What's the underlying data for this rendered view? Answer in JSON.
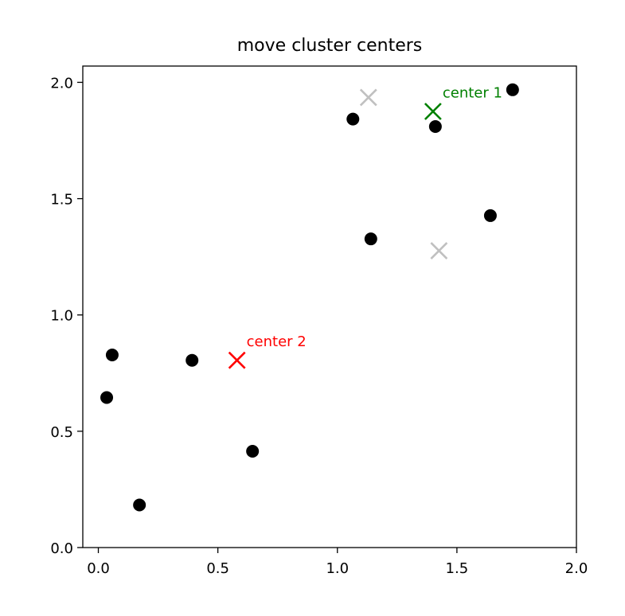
{
  "chart_data": {
    "type": "scatter",
    "title": "move cluster centers",
    "xlabel": "",
    "ylabel": "",
    "xlim": [
      -0.065,
      2.0
    ],
    "ylim": [
      0.0,
      2.07
    ],
    "xticks": [
      0.0,
      0.5,
      1.0,
      1.5,
      2.0
    ],
    "xtick_labels": [
      "0.0",
      "0.5",
      "1.0",
      "1.5",
      "2.0"
    ],
    "yticks": [
      0.0,
      0.5,
      1.0,
      1.5,
      2.0
    ],
    "ytick_labels": [
      "0.0",
      "0.5",
      "1.0",
      "1.5",
      "2.0"
    ],
    "grid": false,
    "points": {
      "color": "#000000",
      "x": [
        0.035,
        0.058,
        0.172,
        0.392,
        0.645,
        1.065,
        1.14,
        1.41,
        1.64,
        1.733
      ],
      "y": [
        0.645,
        0.828,
        0.183,
        0.805,
        0.414,
        1.842,
        1.327,
        1.81,
        1.427,
        1.968
      ]
    },
    "old_centers": {
      "color": "#c0c0c0",
      "x": [
        1.13,
        1.425
      ],
      "y": [
        1.935,
        1.276
      ]
    },
    "new_centers": [
      {
        "x": 1.4,
        "y": 1.875,
        "color": "#008000",
        "label": "center 1",
        "label_dx": 0.04,
        "label_dy": 0.06
      },
      {
        "x": 0.58,
        "y": 0.805,
        "color": "#ff0000",
        "label": "center 2",
        "label_dx": 0.04,
        "label_dy": 0.06
      }
    ]
  }
}
